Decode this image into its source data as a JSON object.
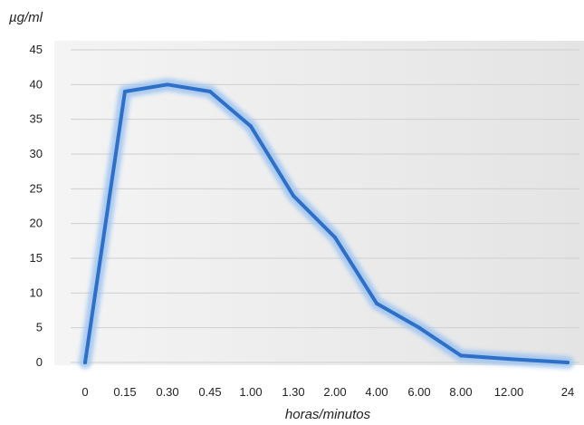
{
  "chart_data": {
    "type": "line",
    "ylabel": "µg/ml",
    "xlabel": "horas/minutos",
    "categories": [
      "0",
      "0.15",
      "0.30",
      "0.45",
      "1.00",
      "1.30",
      "2.00",
      "4.00",
      "6.00",
      "8.00",
      "12.00",
      "24"
    ],
    "series": [
      {
        "values": [
          0,
          39,
          40,
          39,
          34,
          24,
          18,
          8.5,
          5,
          1,
          0.5,
          0
        ]
      }
    ],
    "ylim": [
      0,
      45
    ],
    "yticks": [
      0,
      5,
      10,
      15,
      20,
      25,
      30,
      35,
      40,
      45
    ],
    "grid": true,
    "line_color": "#2e6fc7",
    "plot_background": "#ececec"
  }
}
